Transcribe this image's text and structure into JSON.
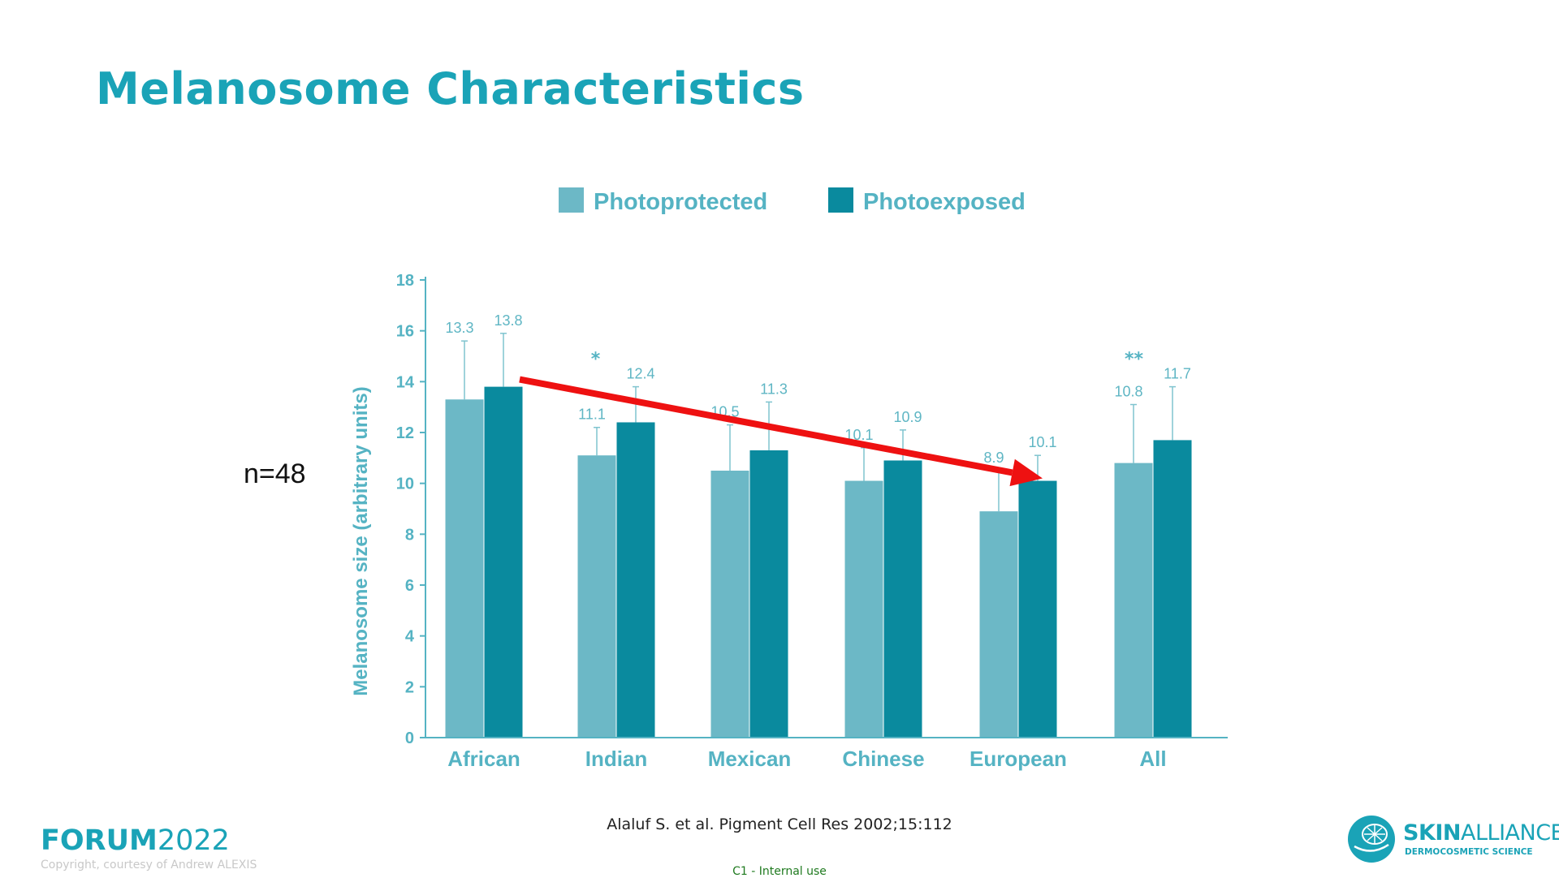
{
  "title": "Melanosome Characteristics",
  "annotation_n": "n=48",
  "citation": "Alaluf S. et al. Pigment Cell Res 2002;15:112",
  "classification": "C1 - Internal use",
  "footer": {
    "forum_word": "FORUM",
    "forum_year": "2022",
    "copyright": "Copyright, courtesy of Andrew ALEXIS"
  },
  "brand": {
    "name_strong": "SKIN",
    "name_light": "ALLIANCE",
    "tagline": "DERMOCOSMETIC SCIENCE"
  },
  "colors": {
    "title": "#1aa3b7",
    "photoprotected": "#6cb8c6",
    "photoexposed": "#0a8a9e",
    "axis": "#55b3c3",
    "trend_arrow": "#ee1111"
  },
  "chart_data": {
    "type": "bar",
    "ylabel": "Melanosome size (arbitrary units)",
    "xlabel": "",
    "ylim": [
      0,
      18
    ],
    "yticks": [
      0,
      2,
      4,
      6,
      8,
      10,
      12,
      14,
      16,
      18
    ],
    "categories": [
      "African",
      "Indian",
      "Mexican",
      "Chinese",
      "European",
      "All"
    ],
    "series": [
      {
        "name": "Photoprotected",
        "values": [
          13.3,
          11.1,
          10.5,
          10.1,
          8.9,
          10.8
        ],
        "labels": [
          "13.3",
          "11.1",
          "10.5",
          "10.1",
          "8.9",
          "10.8"
        ],
        "error_upper": [
          15.6,
          12.2,
          12.3,
          11.4,
          10.5,
          13.1
        ]
      },
      {
        "name": "Photoexposed",
        "values": [
          13.8,
          12.4,
          11.3,
          10.9,
          10.1,
          11.7
        ],
        "labels": [
          "13.8",
          "12.4",
          "11.3",
          "10.9",
          "10.1",
          "11.7"
        ],
        "error_upper": [
          15.9,
          13.8,
          13.2,
          12.1,
          11.1,
          13.8
        ]
      }
    ],
    "significance": [
      "",
      "*",
      "",
      "",
      "",
      "**"
    ],
    "legend_position": "top",
    "grid": false,
    "trend_arrow": {
      "from": {
        "category": "African",
        "series": "Photoexposed",
        "value": 13.8
      },
      "to": {
        "category": "European",
        "series": "Photoexposed",
        "value": 10.1
      }
    }
  }
}
